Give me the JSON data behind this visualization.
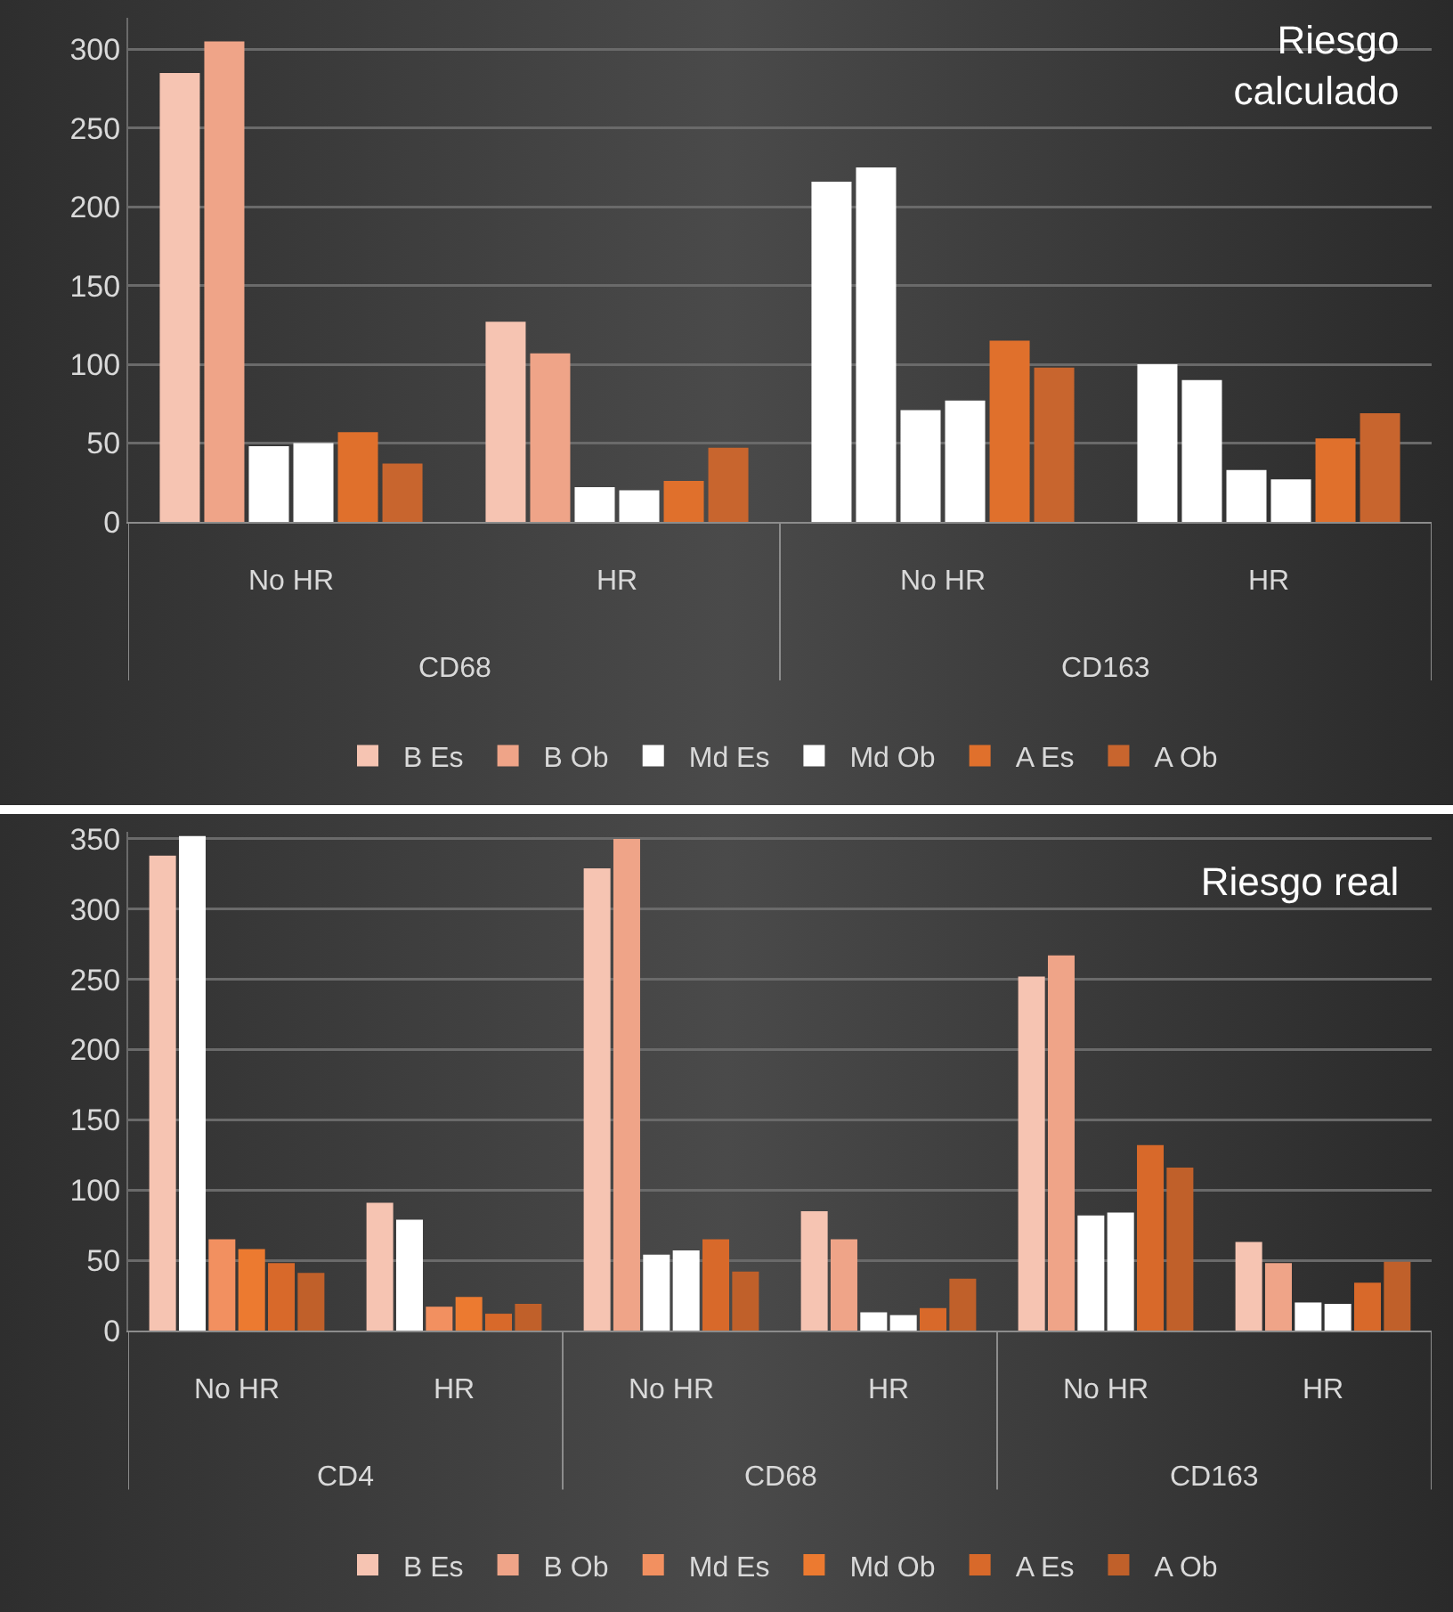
{
  "chart_data": [
    {
      "type": "bar",
      "title": "Riesgo calculado",
      "categories": [
        "No HR",
        "HR",
        "No HR",
        "HR"
      ],
      "annotations": [
        "CD68",
        "CD163"
      ],
      "ylim": [
        0,
        320
      ],
      "yticks": [
        0,
        50,
        100,
        150,
        200,
        250,
        300
      ],
      "grid": "y",
      "legend": "bottom",
      "series": [
        {
          "name": "B Es",
          "color": "#f6c4b2",
          "colors": [
            "#f6c4b2",
            "#f6c4b2",
            "#ffffff",
            "#ffffff"
          ],
          "values": [
            285,
            127,
            216,
            100
          ]
        },
        {
          "name": "B Ob",
          "color": "#efa488",
          "colors": [
            "#efa488",
            "#efa488",
            "#ffffff",
            "#ffffff"
          ],
          "values": [
            305,
            107,
            225,
            90
          ]
        },
        {
          "name": "Md Es",
          "color": "#ffffff",
          "values": [
            48,
            22,
            71,
            33
          ]
        },
        {
          "name": "Md Ob",
          "color": "#ffffff",
          "values": [
            50,
            20,
            77,
            27
          ]
        },
        {
          "name": "A Es",
          "color": "#e0702c",
          "values": [
            57,
            26,
            115,
            53
          ]
        },
        {
          "name": "A Ob",
          "color": "#c8652e",
          "values": [
            37,
            47,
            98,
            69
          ]
        }
      ]
    },
    {
      "type": "bar",
      "title": "Riesgo real",
      "categories": [
        "No HR",
        "HR",
        "No HR",
        "HR",
        "No HR",
        "HR"
      ],
      "annotations": [
        "CD4",
        "CD68",
        "CD163"
      ],
      "ylim": [
        0,
        355
      ],
      "yticks": [
        0,
        50,
        100,
        150,
        200,
        250,
        300,
        350
      ],
      "grid": "y",
      "legend": "bottom",
      "series": [
        {
          "name": "B Es",
          "color": "#f6c4b2",
          "values": [
            338,
            91,
            329,
            85,
            252,
            63
          ]
        },
        {
          "name": "B Ob",
          "color": "#efa488",
          "colors": [
            "#ffffff",
            "#ffffff",
            "#efa488",
            "#efa488",
            "#efa488",
            "#efa488"
          ],
          "values": [
            352,
            79,
            350,
            65,
            267,
            48
          ]
        },
        {
          "name": "Md Es",
          "color": "#f29060",
          "colors": [
            "#f29060",
            "#f29060",
            "#ffffff",
            "#ffffff",
            "#ffffff",
            "#ffffff"
          ],
          "values": [
            65,
            17,
            54,
            13,
            82,
            20
          ]
        },
        {
          "name": "Md Ob",
          "color": "#ec7a30",
          "colors": [
            "#ec7a30",
            "#ec7a30",
            "#ffffff",
            "#ffffff",
            "#ffffff",
            "#ffffff"
          ],
          "values": [
            58,
            24,
            57,
            11,
            84,
            19
          ]
        },
        {
          "name": "A Es",
          "color": "#d8692a",
          "values": [
            48,
            12,
            65,
            16,
            132,
            34
          ]
        },
        {
          "name": "A Ob",
          "color": "#c0602a",
          "values": [
            41,
            19,
            42,
            37,
            116,
            49
          ]
        }
      ]
    }
  ]
}
